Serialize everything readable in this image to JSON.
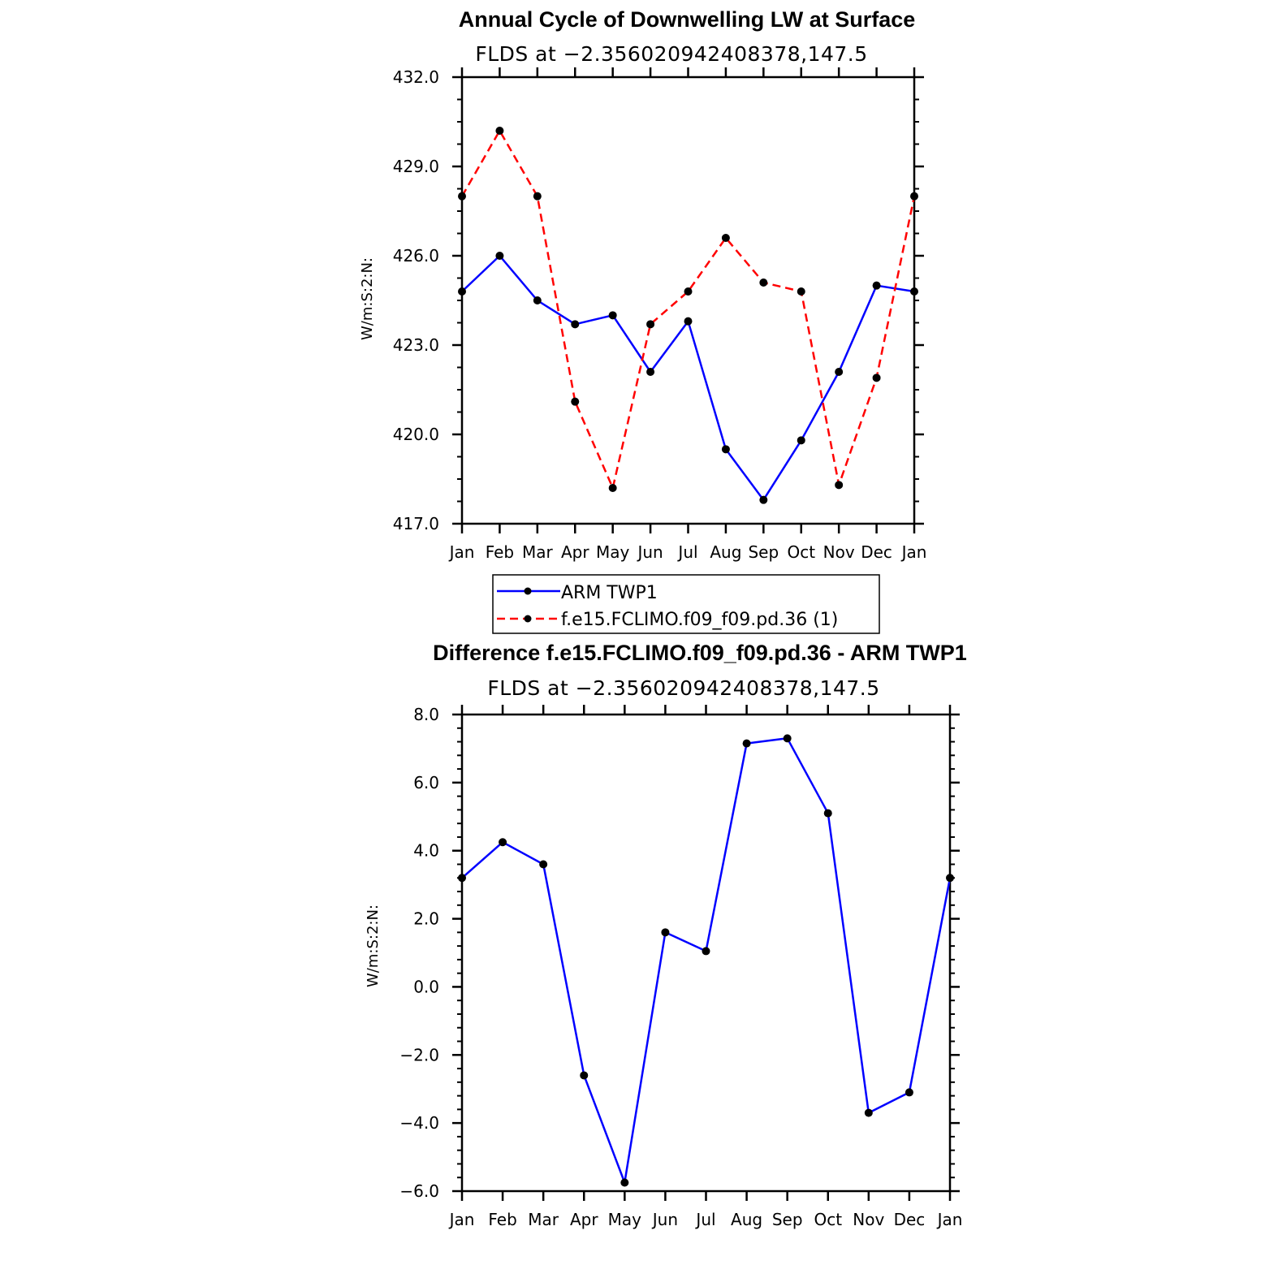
{
  "chart_data": [
    {
      "type": "line",
      "title": "Annual Cycle of Downwelling LW at Surface",
      "subtitle": "FLDS at −2.356020942408378,147.5",
      "ylabel": "W/m:S:2:N:",
      "xlabel": "",
      "categories": [
        "Jan",
        "Feb",
        "Mar",
        "Apr",
        "May",
        "Jun",
        "Jul",
        "Aug",
        "Sep",
        "Oct",
        "Nov",
        "Dec",
        "Jan"
      ],
      "ylim": [
        417.0,
        432.0
      ],
      "yticks": [
        417.0,
        420.0,
        423.0,
        426.0,
        429.0,
        432.0
      ],
      "ytick_labels": [
        "417.0",
        "420.0",
        "423.0",
        "426.0",
        "429.0",
        "432.0"
      ],
      "grid": false,
      "legend_position": "bottom",
      "series": [
        {
          "name": "ARM TWP1",
          "color": "#0000ff",
          "dash": "solid",
          "values": [
            424.8,
            426.0,
            424.5,
            423.7,
            424.0,
            422.1,
            423.8,
            419.5,
            417.8,
            419.8,
            422.1,
            425.0,
            424.8
          ]
        },
        {
          "name": "f.e15.FCLIMO.f09_f09.pd.36 (1)",
          "color": "#ff0000",
          "dash": "dashed",
          "values": [
            428.0,
            430.2,
            428.0,
            421.1,
            418.2,
            423.7,
            424.8,
            426.6,
            425.1,
            424.8,
            418.3,
            421.9,
            428.0
          ]
        }
      ]
    },
    {
      "type": "line",
      "title": "Difference f.e15.FCLIMO.f09_f09.pd.36 - ARM TWP1",
      "subtitle": "FLDS at −2.356020942408378,147.5",
      "ylabel": "W/m:S:2:N:",
      "xlabel": "",
      "categories": [
        "Jan",
        "Feb",
        "Mar",
        "Apr",
        "May",
        "Jun",
        "Jul",
        "Aug",
        "Sep",
        "Oct",
        "Nov",
        "Dec",
        "Jan"
      ],
      "ylim": [
        -6.0,
        8.0
      ],
      "yticks": [
        -6.0,
        -4.0,
        -2.0,
        0.0,
        2.0,
        4.0,
        6.0,
        8.0
      ],
      "ytick_labels": [
        "−6.0",
        "−4.0",
        "−2.0",
        "0.0",
        "2.0",
        "4.0",
        "6.0",
        "8.0"
      ],
      "grid": false,
      "series": [
        {
          "color": "#0000ff",
          "dash": "solid",
          "values": [
            3.2,
            4.25,
            3.6,
            -2.6,
            -5.75,
            1.6,
            1.05,
            7.15,
            7.3,
            5.1,
            -3.7,
            -3.1,
            3.2
          ]
        }
      ]
    }
  ]
}
